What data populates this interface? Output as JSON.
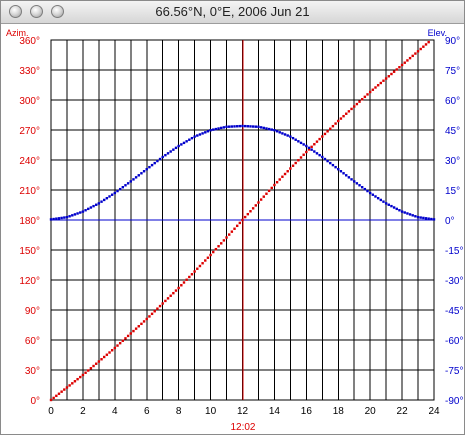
{
  "window": {
    "title": "66.56°N, 0°E, 2006 Jun 21",
    "buttons": [
      "close",
      "minimize",
      "zoom"
    ]
  },
  "colors": {
    "azimuth": "#dd0000",
    "elevation": "#0000cc",
    "grid": "#000000",
    "background": "#ffffff"
  },
  "chart_data": {
    "type": "scatter",
    "title": "",
    "x_ticks": [
      "0",
      "2",
      "4",
      "6",
      "8",
      "10",
      "12",
      "14",
      "16",
      "18",
      "20",
      "22",
      "24"
    ],
    "xlim": [
      0,
      24
    ],
    "x_marker_label": "12:02",
    "x_marker": 12.03,
    "left_axis_label": "Azim.",
    "right_axis_label": "Elev.",
    "left_ticks": [
      "0°",
      "30°",
      "60°",
      "90°",
      "120°",
      "150°",
      "180°",
      "210°",
      "240°",
      "270°",
      "300°",
      "330°",
      "360°"
    ],
    "right_ticks": [
      "-90°",
      "-75°",
      "-60°",
      "-45°",
      "-30°",
      "-15°",
      "0°",
      "15°",
      "30°",
      "45°",
      "60°",
      "75°",
      "90°"
    ],
    "azimuth_lim": [
      0,
      360
    ],
    "elevation_lim": [
      -90,
      90
    ],
    "horizon_line": 0,
    "grid": true,
    "series": [
      {
        "name": "Azim.",
        "axis": "left",
        "x": [
          0,
          2,
          4,
          6,
          8,
          10,
          12,
          14,
          16,
          18,
          20,
          22,
          23.75
        ],
        "values": [
          0,
          25,
          52,
          81,
          112,
          145,
          180,
          215,
          248,
          279,
          308,
          335,
          359
        ]
      },
      {
        "name": "Elev.",
        "axis": "right",
        "x": [
          0,
          1,
          2,
          3,
          4,
          5,
          6,
          7,
          8,
          9,
          10,
          11,
          12,
          13,
          14,
          15,
          16,
          17,
          18,
          19,
          20,
          21,
          22,
          23,
          24
        ],
        "values": [
          0.3,
          1.4,
          4.2,
          8.3,
          13.5,
          19.3,
          25.4,
          31.5,
          37.0,
          41.7,
          44.9,
          46.6,
          47.0,
          46.6,
          44.9,
          41.7,
          37.0,
          31.5,
          25.4,
          19.3,
          13.5,
          8.3,
          4.2,
          1.4,
          0.3
        ]
      }
    ]
  }
}
